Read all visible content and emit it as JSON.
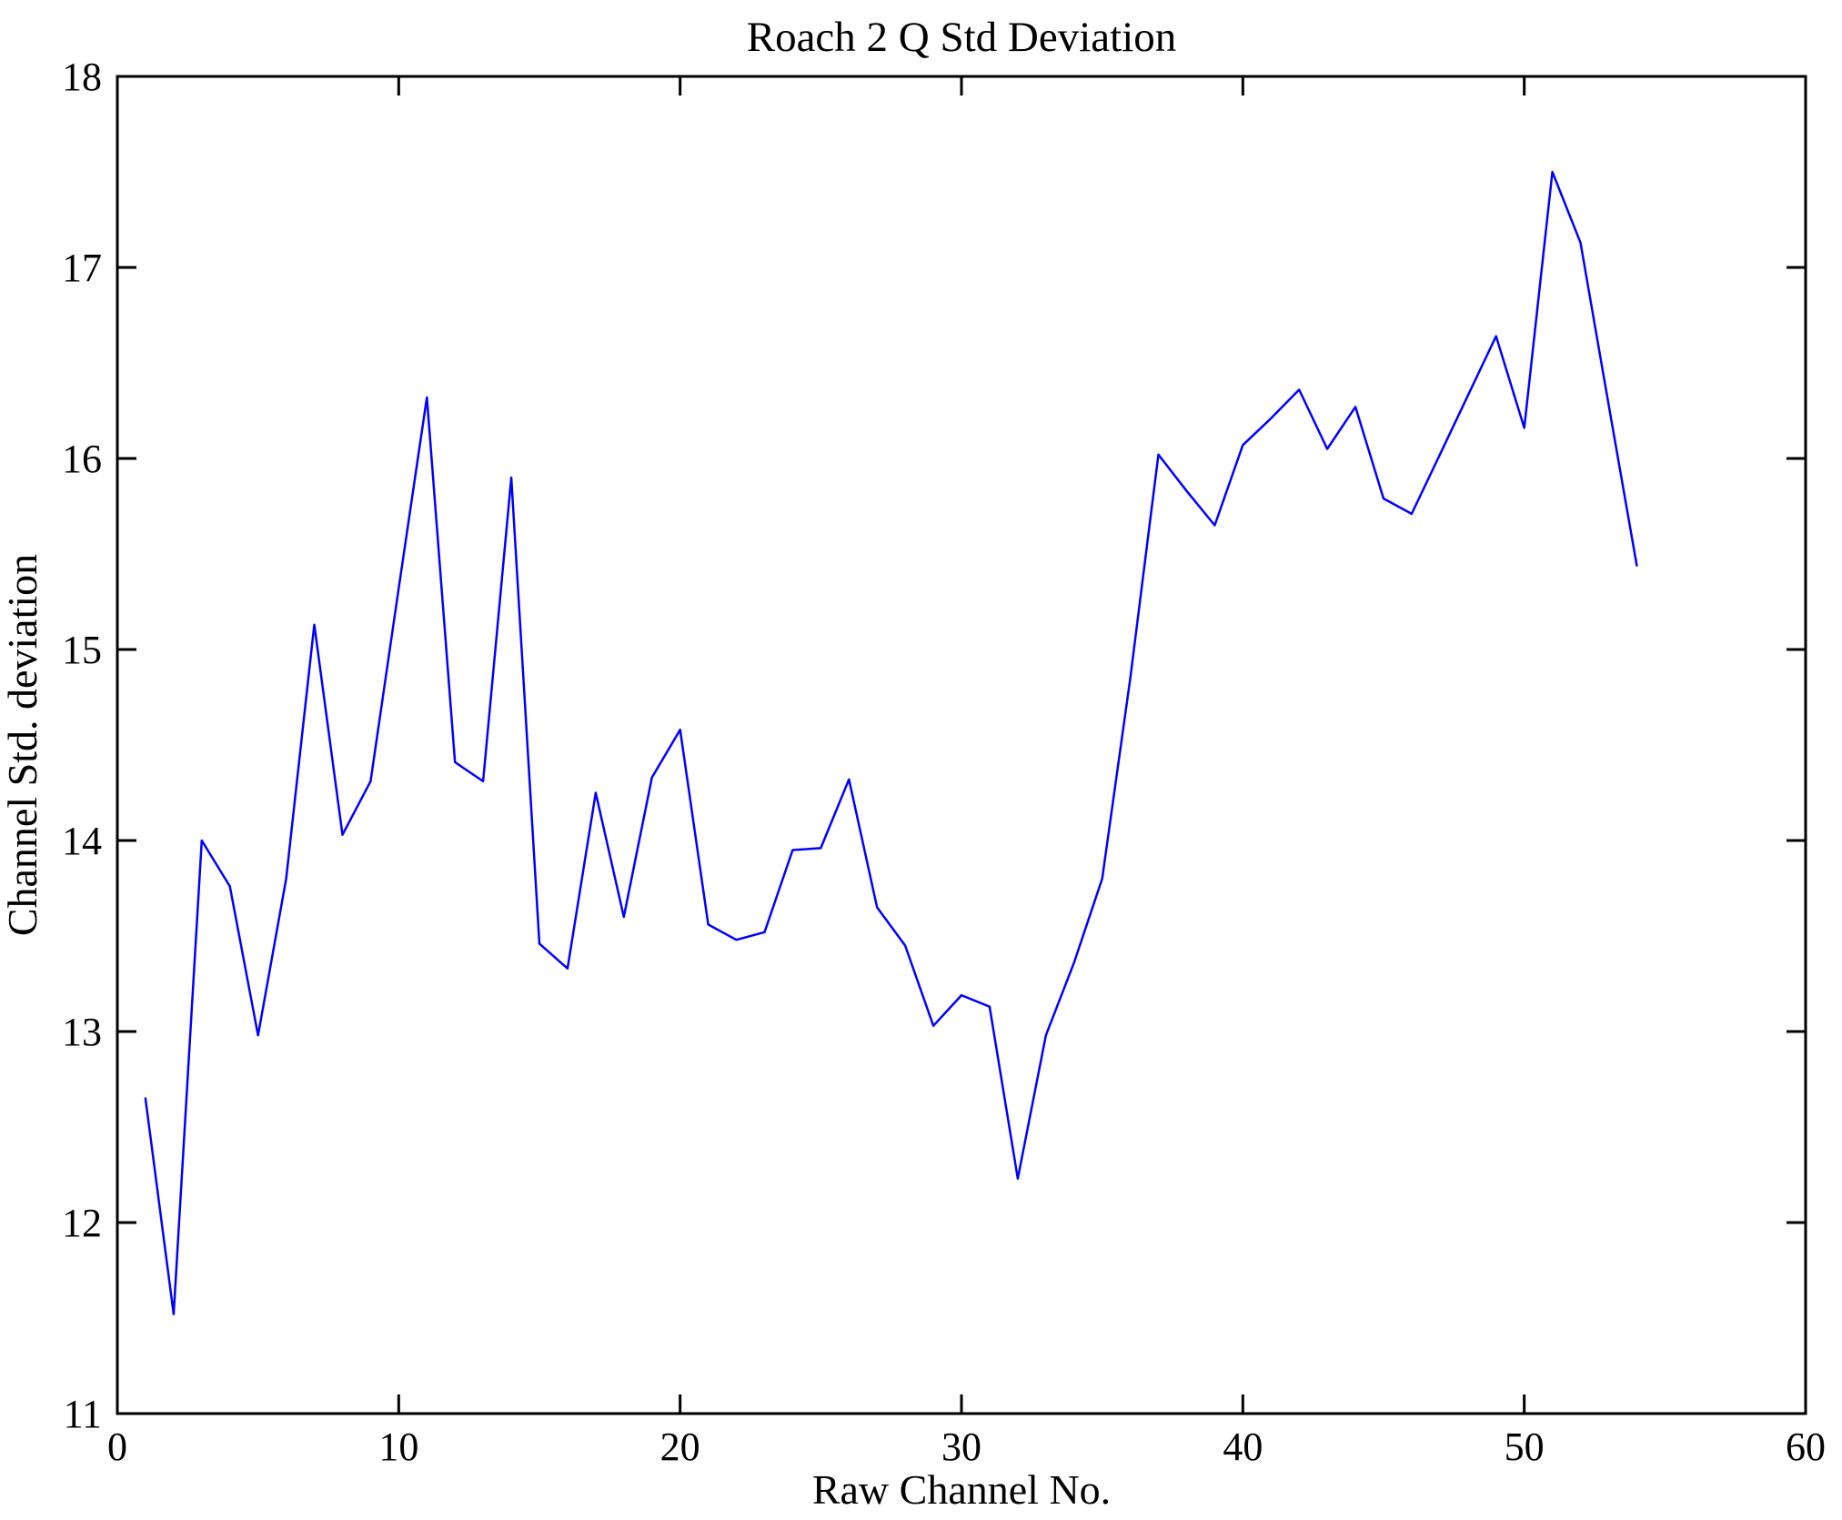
{
  "figure": {
    "background": "#ffffff",
    "frame_color": "#000000"
  },
  "chart_data": {
    "type": "line",
    "title": "Roach 2 Q Std Deviation",
    "xlabel": "Raw Channel No.",
    "ylabel": "Channel Std. deviation",
    "xlim": [
      0,
      60
    ],
    "ylim": [
      11,
      18
    ],
    "xticks": [
      "0",
      "10",
      "20",
      "30",
      "40",
      "50",
      "60"
    ],
    "yticks": [
      "11",
      "12",
      "13",
      "14",
      "15",
      "16",
      "17",
      "18"
    ],
    "grid": false,
    "legend": "none",
    "box": true,
    "line_color": "#0000ff",
    "x": [
      1,
      2,
      3,
      4,
      5,
      6,
      7,
      8,
      9,
      10,
      11,
      12,
      13,
      14,
      15,
      16,
      17,
      18,
      19,
      20,
      21,
      22,
      23,
      24,
      25,
      26,
      27,
      28,
      29,
      30,
      31,
      32,
      33,
      34,
      35,
      36,
      37,
      38,
      39,
      40,
      41,
      42,
      43,
      44,
      45,
      46,
      47,
      48,
      49,
      50,
      51,
      52,
      53,
      54
    ],
    "y": [
      12.65,
      11.52,
      14.0,
      13.76,
      12.98,
      13.8,
      15.13,
      14.03,
      14.31,
      15.32,
      16.32,
      14.41,
      14.31,
      15.9,
      13.46,
      13.33,
      14.25,
      13.6,
      14.33,
      14.58,
      13.56,
      13.48,
      13.52,
      13.95,
      13.96,
      14.32,
      13.65,
      13.45,
      13.03,
      13.19,
      13.13,
      12.23,
      12.98,
      13.36,
      13.8,
      14.85,
      16.02,
      15.83,
      15.65,
      16.07,
      16.21,
      16.36,
      16.05,
      16.27,
      15.79,
      15.71,
      16.02,
      16.33,
      16.64,
      16.16,
      17.5,
      17.13,
      16.28,
      15.44
    ]
  }
}
